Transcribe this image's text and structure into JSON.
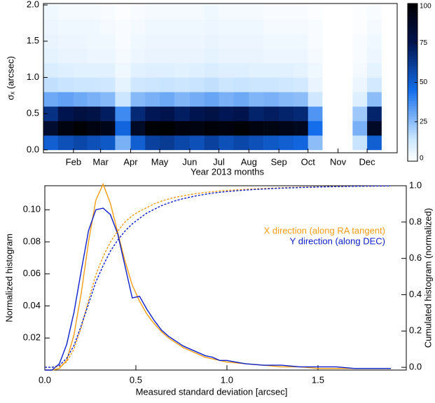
{
  "chart_data": [
    {
      "type": "heatmap",
      "ylabel": "σₓ (arcsec)",
      "xlabel": "Year 2013 months",
      "xlim": [
        0,
        365
      ],
      "xticks": [
        {
          "value": 31,
          "label": "Feb"
        },
        {
          "value": 59,
          "label": "Mar"
        },
        {
          "value": 90,
          "label": "Apr"
        },
        {
          "value": 120,
          "label": "May"
        },
        {
          "value": 151,
          "label": "Jun"
        },
        {
          "value": 181,
          "label": "Jul"
        },
        {
          "value": 212,
          "label": "Aug"
        },
        {
          "value": 243,
          "label": "Sep"
        },
        {
          "value": 273,
          "label": "Oct"
        },
        {
          "value": 304,
          "label": "Nov"
        },
        {
          "value": 334,
          "label": "Dec"
        }
      ],
      "ylim": [
        -0.04,
        2.02
      ],
      "yticks": [
        {
          "value": 0,
          "label": "0.0"
        },
        {
          "value": 0.5,
          "label": "0.5"
        },
        {
          "value": 1,
          "label": "1.0"
        },
        {
          "value": 1.5,
          "label": "1.5"
        },
        {
          "value": 2,
          "label": "2.0"
        }
      ],
      "x_bins": [
        0,
        15,
        31,
        45,
        59,
        74,
        90,
        105,
        120,
        135,
        151,
        166,
        181,
        196,
        212,
        227,
        243,
        258,
        273,
        288,
        304,
        319,
        334,
        349,
        365
      ],
      "y_bins": [
        0,
        0.2,
        0.4,
        0.6,
        0.8,
        1.0,
        1.2,
        1.4,
        1.6,
        1.8,
        2.0
      ],
      "z": [
        [
          50,
          55,
          58,
          55,
          52,
          28,
          50,
          60,
          62,
          58,
          55,
          60,
          55,
          58,
          55,
          52,
          50,
          48,
          25,
          0,
          0,
          15,
          50,
          0
        ],
        [
          85,
          95,
          98,
          95,
          92,
          48,
          88,
          98,
          99,
          96,
          95,
          97,
          96,
          98,
          95,
          94,
          92,
          90,
          45,
          0,
          0,
          28,
          88,
          0
        ],
        [
          65,
          75,
          80,
          78,
          72,
          38,
          68,
          74,
          76,
          72,
          75,
          78,
          74,
          76,
          70,
          72,
          70,
          68,
          35,
          0,
          0,
          22,
          70,
          0
        ],
        [
          30,
          32,
          30,
          28,
          26,
          14,
          26,
          28,
          30,
          27,
          29,
          31,
          28,
          30,
          27,
          28,
          26,
          25,
          13,
          0,
          0,
          9,
          25,
          0
        ],
        [
          16,
          15,
          14,
          14,
          13,
          7,
          13,
          14,
          15,
          14,
          15,
          16,
          14,
          15,
          14,
          14,
          13,
          12,
          6,
          0,
          0,
          5,
          12,
          0
        ],
        [
          10,
          9,
          8,
          8,
          8,
          4,
          8,
          9,
          9,
          8,
          9,
          10,
          9,
          9,
          8,
          8,
          8,
          7,
          4,
          0,
          0,
          3,
          7,
          0
        ],
        [
          7,
          6,
          6,
          5,
          5,
          3,
          5,
          6,
          6,
          6,
          6,
          7,
          6,
          6,
          6,
          5,
          5,
          5,
          3,
          0,
          0,
          2,
          5,
          0
        ],
        [
          6,
          5,
          5,
          4,
          4,
          2,
          4,
          5,
          5,
          5,
          5,
          6,
          5,
          5,
          5,
          4,
          4,
          4,
          2,
          0,
          0,
          2,
          4,
          0
        ],
        [
          5,
          4,
          4,
          4,
          3,
          2,
          3,
          4,
          4,
          4,
          4,
          5,
          4,
          4,
          4,
          3,
          3,
          3,
          2,
          0,
          0,
          1,
          3,
          0
        ],
        [
          4,
          3,
          3,
          3,
          2,
          1,
          2,
          3,
          3,
          3,
          3,
          4,
          3,
          3,
          3,
          2,
          2,
          2,
          1,
          0,
          0,
          1,
          2,
          0
        ]
      ],
      "zlim": [
        0,
        100
      ],
      "zticks": [
        0,
        25,
        50,
        75,
        100
      ]
    },
    {
      "type": "line",
      "xlabel": "Measured standard deviation [arcsec]",
      "ylabel": "Normalized histogram",
      "y2label": "Cumulated histogram (normalized)",
      "xlim": [
        0,
        1.985
      ],
      "xticks": [
        {
          "value": 0,
          "label": "0.0"
        },
        {
          "value": 0.5,
          "label": "0.5"
        },
        {
          "value": 1,
          "label": "1.0"
        },
        {
          "value": 1.5,
          "label": "1.5"
        }
      ],
      "ylim": [
        0,
        0.115
      ],
      "yticks": [
        0.02,
        0.04,
        0.06,
        0.08,
        {
          "value": 0.1,
          "label": "0.10"
        }
      ],
      "y2lim": [
        -0.015,
        1.0
      ],
      "y2ticks": [
        {
          "value": 0,
          "label": "0.0"
        },
        0.2,
        0.4,
        0.6,
        0.8,
        {
          "value": 1,
          "label": "1.0"
        }
      ],
      "legend": "right",
      "x": [
        0,
        0.04,
        0.08,
        0.12,
        0.16,
        0.2,
        0.24,
        0.28,
        0.32,
        0.36,
        0.4,
        0.44,
        0.48,
        0.52,
        0.56,
        0.6,
        0.64,
        0.68,
        0.72,
        0.76,
        0.8,
        0.84,
        0.88,
        0.92,
        0.96,
        1.0,
        1.1,
        1.2,
        1.3,
        1.4,
        1.5,
        1.6,
        1.7,
        1.8,
        1.9
      ],
      "series": [
        {
          "name": "X direction (along RA tangent)",
          "color": "#f39c12",
          "values": [
            0,
            0,
            0.001,
            0.006,
            0.022,
            0.048,
            0.08,
            0.106,
            0.116,
            0.104,
            0.086,
            0.068,
            0.053,
            0.043,
            0.035,
            0.029,
            0.024,
            0.02,
            0.017,
            0.014,
            0.012,
            0.01,
            0.008,
            0.007,
            0.006,
            0.005,
            0.004,
            0.003,
            0.002,
            0.002,
            0.001,
            0.001,
            0.001,
            0.001,
            0.001
          ]
        },
        {
          "name": "Y direction (along DEC)",
          "color": "#0b1fcc",
          "values": [
            0,
            0,
            0.004,
            0.016,
            0.036,
            0.062,
            0.087,
            0.1,
            0.101,
            0.097,
            0.085,
            0.065,
            0.045,
            0.046,
            0.038,
            0.031,
            0.025,
            0.021,
            0.018,
            0.015,
            0.013,
            0.011,
            0.009,
            0.008,
            0.006,
            0.006,
            0.004,
            0.003,
            0.003,
            0.002,
            0.002,
            0.002,
            0.001,
            0.001,
            0.001
          ]
        },
        {
          "color": "#f39c12",
          "axis": "y2",
          "dashed": true,
          "values": [
            0,
            0,
            0.005,
            0.03,
            0.1,
            0.22,
            0.37,
            0.51,
            0.61,
            0.69,
            0.75,
            0.8,
            0.835,
            0.86,
            0.88,
            0.9,
            0.915,
            0.927,
            0.937,
            0.945,
            0.952,
            0.958,
            0.963,
            0.967,
            0.971,
            0.974,
            0.98,
            0.985,
            0.989,
            0.992,
            0.994,
            0.996,
            0.997,
            0.998,
            0.999
          ]
        },
        {
          "color": "#0b1fcc",
          "axis": "y2",
          "dashed": true,
          "values": [
            0,
            0,
            0.01,
            0.05,
            0.12,
            0.23,
            0.35,
            0.47,
            0.56,
            0.64,
            0.7,
            0.75,
            0.79,
            0.82,
            0.85,
            0.87,
            0.89,
            0.905,
            0.918,
            0.929,
            0.938,
            0.946,
            0.953,
            0.959,
            0.964,
            0.968,
            0.976,
            0.982,
            0.987,
            0.99,
            0.993,
            0.995,
            0.997,
            0.998,
            0.999
          ]
        }
      ]
    }
  ]
}
